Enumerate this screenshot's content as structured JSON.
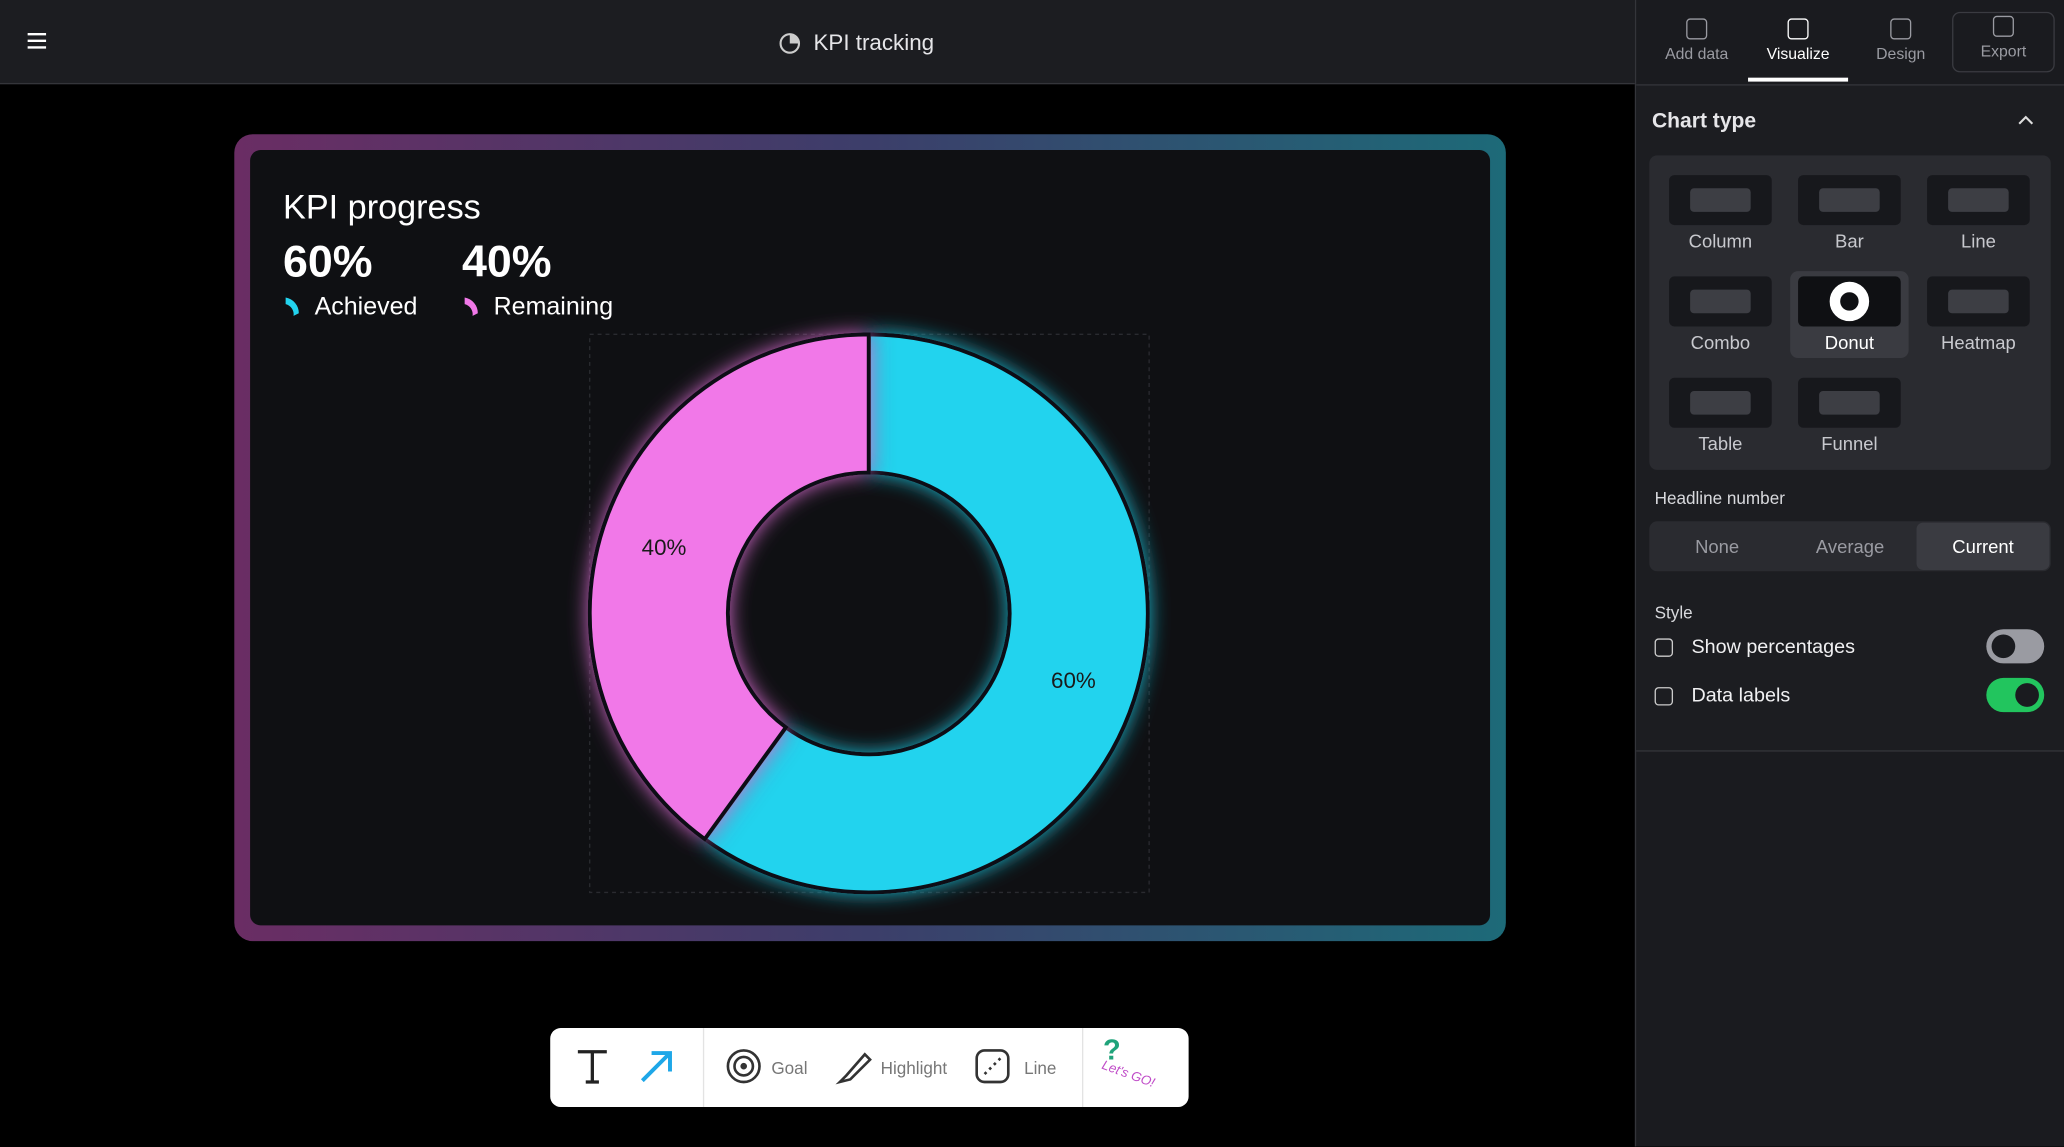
{
  "header": {
    "title": "KPI tracking"
  },
  "tabs": [
    "Add data",
    "Visualize",
    "Design",
    "Export"
  ],
  "active_tab": 1,
  "chart_data": {
    "type": "donut",
    "title": "KPI progress",
    "categories": [
      "Achieved",
      "Remaining"
    ],
    "values": [
      60,
      40
    ],
    "value_labels": [
      "60%",
      "40%"
    ],
    "colors": [
      "#22d3ee",
      "#f178e8"
    ]
  },
  "panel": {
    "section": "Chart type",
    "chart_types": [
      "Column",
      "Bar",
      "Line",
      "Combo",
      "Donut",
      "Heatmap",
      "Table",
      "Funnel"
    ],
    "selected_chart_type": 4,
    "headline_label": "Headline number",
    "headline_options": [
      "None",
      "Average",
      "Current"
    ],
    "headline_selected": 2,
    "style_label": "Style",
    "toggles": [
      {
        "label": "Show percentages",
        "on": false
      },
      {
        "label": "Data labels",
        "on": true
      }
    ]
  },
  "toolbar": {
    "tools": [
      "Goal",
      "Highlight",
      "Line"
    ],
    "sticker": "Let's GO!"
  }
}
